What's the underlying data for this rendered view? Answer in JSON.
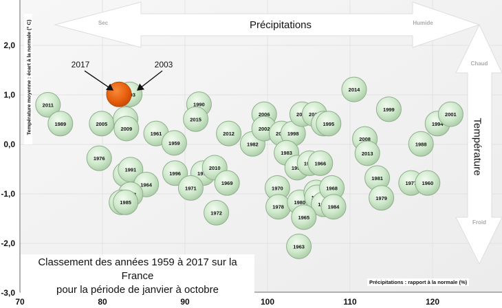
{
  "chart_data": {
    "type": "scatter",
    "subtype": "bubble",
    "title": "Classement des années 1959 à 2017 sur la France pour la période de janvier à octobre",
    "caption_lines": [
      "Classement des années 1959 à 2017 sur la France",
      "pour la période de janvier à octobre"
    ],
    "xlabel": "Précipitations : rapport à la normale (%)",
    "ylabel": "Température moyenne : écart à la normale (° C)",
    "xlim": [
      70,
      125
    ],
    "ylim": [
      -3.0,
      2.9
    ],
    "x_ticks": [
      "70",
      "80",
      "90",
      "100",
      "110",
      "120"
    ],
    "y_ticks": [
      "2,0",
      "1,0",
      "0,0",
      "-1,0",
      "-2,0",
      "-3,0"
    ],
    "grid": true,
    "colors": {
      "bubble": "#c8e6c6",
      "bubble_edge": "#8fae8c",
      "highlight": "#e8600e",
      "highlight_edge": "#b84a08"
    },
    "annotations": [
      {
        "text": "2017",
        "x": 80.6,
        "y": 1.0
      },
      {
        "text": "2003",
        "x": 83.0,
        "y": 1.0
      }
    ],
    "arrows": {
      "horizontal": {
        "label": "Précipitations",
        "left": "Sec",
        "right": "Humide"
      },
      "vertical": {
        "label": "Température",
        "top": "Chaud",
        "bottom": "Froid"
      }
    },
    "points": [
      {
        "year": "2011",
        "x": 73.4,
        "y": 0.8
      },
      {
        "year": "1989",
        "x": 74.9,
        "y": 0.42
      },
      {
        "year": "2005",
        "x": 79.9,
        "y": 0.42
      },
      {
        "year": "2003",
        "x": 83.3,
        "y": 1.01
      },
      {
        "year": "2017",
        "x": 82.0,
        "y": 1.01,
        "highlight": true
      },
      {
        "year": "1997",
        "x": 82.8,
        "y": 0.51
      },
      {
        "year": "2009",
        "x": 82.9,
        "y": 0.32
      },
      {
        "year": "1961",
        "x": 86.5,
        "y": 0.22
      },
      {
        "year": "1959",
        "x": 88.7,
        "y": 0.03
      },
      {
        "year": "1976",
        "x": 79.6,
        "y": -0.28
      },
      {
        "year": "1967",
        "x": 82.8,
        "y": -0.61
      },
      {
        "year": "1991",
        "x": 83.4,
        "y": -0.51
      },
      {
        "year": "1964",
        "x": 85.3,
        "y": -0.81
      },
      {
        "year": "1973",
        "x": 83.4,
        "y": -1.01
      },
      {
        "year": "1962",
        "x": 82.3,
        "y": -1.17
      },
      {
        "year": "1985",
        "x": 82.8,
        "y": -1.17
      },
      {
        "year": "1990",
        "x": 91.7,
        "y": 0.81
      },
      {
        "year": "2015",
        "x": 91.3,
        "y": 0.51
      },
      {
        "year": "2012",
        "x": 95.3,
        "y": 0.22
      },
      {
        "year": "1982",
        "x": 98.2,
        "y": 0.01
      },
      {
        "year": "2006",
        "x": 99.6,
        "y": 0.61
      },
      {
        "year": "2002",
        "x": 99.6,
        "y": 0.32
      },
      {
        "year": "2004",
        "x": 101.7,
        "y": 0.22
      },
      {
        "year": "1998",
        "x": 103.1,
        "y": 0.22
      },
      {
        "year": "2007",
        "x": 104.2,
        "y": 0.61
      },
      {
        "year": "2016",
        "x": 105.7,
        "y": 0.61
      },
      {
        "year": "2000",
        "x": 106.8,
        "y": 0.42
      },
      {
        "year": "1995",
        "x": 107.4,
        "y": 0.42
      },
      {
        "year": "1996",
        "x": 88.8,
        "y": -0.58
      },
      {
        "year": "1975",
        "x": 92.2,
        "y": -0.58
      },
      {
        "year": "2010",
        "x": 93.6,
        "y": -0.47
      },
      {
        "year": "1971",
        "x": 90.7,
        "y": -0.88
      },
      {
        "year": "1969",
        "x": 95.1,
        "y": -0.78
      },
      {
        "year": "1972",
        "x": 93.8,
        "y": -1.38
      },
      {
        "year": "1983",
        "x": 102.3,
        "y": -0.17
      },
      {
        "year": "1993",
        "x": 103.6,
        "y": -0.47
      },
      {
        "year": "1992",
        "x": 105.1,
        "y": -0.38
      },
      {
        "year": "1966",
        "x": 106.4,
        "y": -0.38
      },
      {
        "year": "1970",
        "x": 101.2,
        "y": -0.88
      },
      {
        "year": "1978",
        "x": 101.3,
        "y": -1.26
      },
      {
        "year": "1980",
        "x": 103.9,
        "y": -1.17
      },
      {
        "year": "1974",
        "x": 105.9,
        "y": -0.97
      },
      {
        "year": "1987",
        "x": 106.0,
        "y": -1.07
      },
      {
        "year": "1986",
        "x": 106.8,
        "y": -1.21
      },
      {
        "year": "1968",
        "x": 107.8,
        "y": -0.88
      },
      {
        "year": "1984",
        "x": 108.0,
        "y": -1.26
      },
      {
        "year": "1965",
        "x": 104.4,
        "y": -1.47
      },
      {
        "year": "1963",
        "x": 103.8,
        "y": -2.06
      },
      {
        "year": "2014",
        "x": 110.5,
        "y": 1.11
      },
      {
        "year": "1999",
        "x": 114.7,
        "y": 0.71
      },
      {
        "year": "2008",
        "x": 111.8,
        "y": 0.11
      },
      {
        "year": "2013",
        "x": 112.1,
        "y": -0.18
      },
      {
        "year": "1981",
        "x": 113.3,
        "y": -0.68
      },
      {
        "year": "1979",
        "x": 113.8,
        "y": -1.08
      },
      {
        "year": "1977",
        "x": 117.4,
        "y": -0.78
      },
      {
        "year": "1960",
        "x": 119.4,
        "y": -0.78
      },
      {
        "year": "1988",
        "x": 118.6,
        "y": 0.01
      },
      {
        "year": "1994",
        "x": 120.6,
        "y": 0.42
      },
      {
        "year": "2001",
        "x": 122.2,
        "y": 0.61
      }
    ]
  }
}
